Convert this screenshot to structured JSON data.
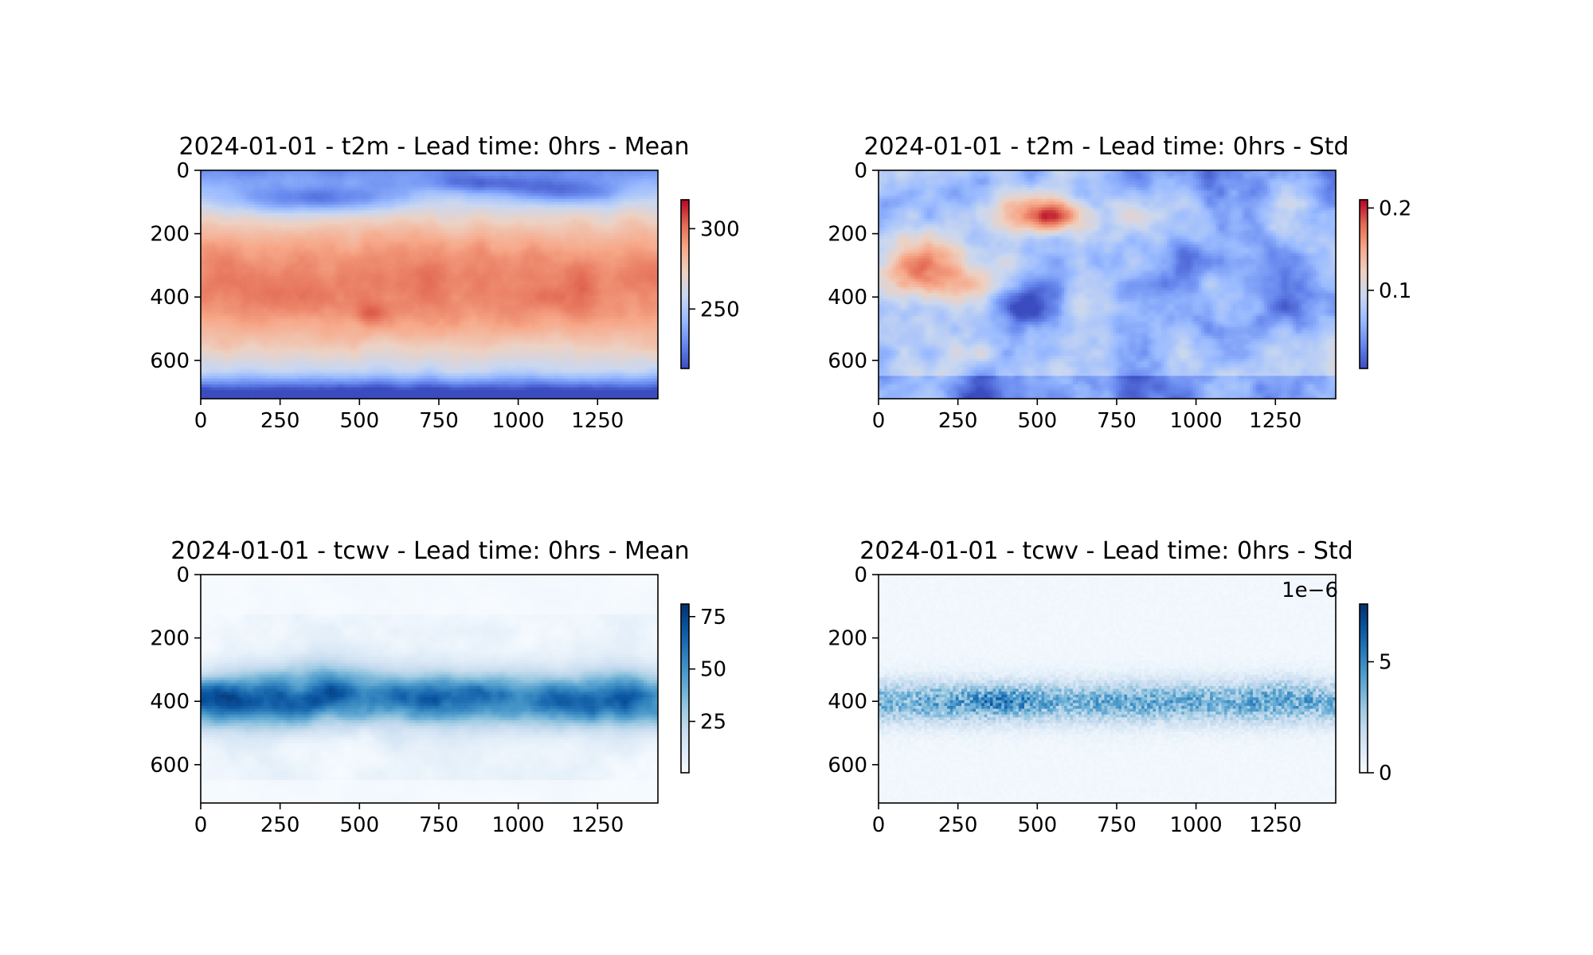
{
  "chart_data": [
    {
      "type": "heatmap",
      "title": "2024-01-01 - t2m - Lead time: 0hrs - Mean",
      "field": "t2m-mean",
      "colormap": "coolwarm",
      "image_shape": [
        721,
        1440
      ],
      "x_ticks": [
        "0",
        "250",
        "500",
        "750",
        "1000",
        "1250"
      ],
      "x_tick_values": [
        0,
        250,
        500,
        750,
        1000,
        1250
      ],
      "y_ticks": [
        "0",
        "200",
        "400",
        "600"
      ],
      "y_tick_values": [
        0,
        200,
        400,
        600
      ],
      "xlim": [
        0,
        1440
      ],
      "ylim": [
        721,
        0
      ],
      "colorbar": {
        "range": [
          213,
          318
        ],
        "ticks": [
          "250",
          "300"
        ],
        "tick_values": [
          250,
          300
        ],
        "offset_label": ""
      }
    },
    {
      "type": "heatmap",
      "title": "2024-01-01 - t2m - Lead time: 0hrs - Std",
      "field": "t2m-std",
      "colormap": "coolwarm",
      "image_shape": [
        721,
        1440
      ],
      "x_ticks": [
        "0",
        "250",
        "500",
        "750",
        "1000",
        "1250"
      ],
      "x_tick_values": [
        0,
        250,
        500,
        750,
        1000,
        1250
      ],
      "y_ticks": [
        "0",
        "200",
        "400",
        "600"
      ],
      "y_tick_values": [
        0,
        200,
        400,
        600
      ],
      "xlim": [
        0,
        1440
      ],
      "ylim": [
        721,
        0
      ],
      "colorbar": {
        "range": [
          0.005,
          0.21
        ],
        "ticks": [
          "0.1",
          "0.2"
        ],
        "tick_values": [
          0.1,
          0.2
        ],
        "offset_label": ""
      }
    },
    {
      "type": "heatmap",
      "title": "2024-01-01 - tcwv - Lead time: 0hrs - Mean",
      "field": "tcwv-mean",
      "colormap": "Blues",
      "image_shape": [
        721,
        1440
      ],
      "x_ticks": [
        "0",
        "250",
        "500",
        "750",
        "1000",
        "1250"
      ],
      "x_tick_values": [
        0,
        250,
        500,
        750,
        1000,
        1250
      ],
      "y_ticks": [
        "0",
        "200",
        "400",
        "600"
      ],
      "y_tick_values": [
        0,
        200,
        400,
        600
      ],
      "xlim": [
        0,
        1440
      ],
      "ylim": [
        721,
        0
      ],
      "colorbar": {
        "range": [
          0.5,
          81
        ],
        "ticks": [
          "25",
          "50",
          "75"
        ],
        "tick_values": [
          25,
          50,
          75
        ],
        "offset_label": ""
      }
    },
    {
      "type": "heatmap",
      "title": "2024-01-01 - tcwv - Lead time: 0hrs - Std",
      "field": "tcwv-std",
      "colormap": "Blues",
      "image_shape": [
        721,
        1440
      ],
      "x_ticks": [
        "0",
        "250",
        "500",
        "750",
        "1000",
        "1250"
      ],
      "x_tick_values": [
        0,
        250,
        500,
        750,
        1000,
        1250
      ],
      "y_ticks": [
        "0",
        "200",
        "400",
        "600"
      ],
      "y_tick_values": [
        0,
        200,
        400,
        600
      ],
      "xlim": [
        0,
        1440
      ],
      "ylim": [
        721,
        0
      ],
      "colorbar": {
        "range": [
          0,
          7.6
        ],
        "ticks": [
          "0",
          "5"
        ],
        "tick_values": [
          0,
          5
        ],
        "offset_label": "1e−6"
      }
    }
  ],
  "colormaps": {
    "coolwarm": [
      "#3b4cc0",
      "#6788ee",
      "#9abbff",
      "#c9d7f0",
      "#edd1c2",
      "#f7a889",
      "#e26952",
      "#b40426"
    ],
    "Blues": [
      "#f7fbff",
      "#deebf7",
      "#c6dbef",
      "#9ecae1",
      "#6baed6",
      "#4292c6",
      "#2171b5",
      "#08519c",
      "#08306b"
    ]
  }
}
